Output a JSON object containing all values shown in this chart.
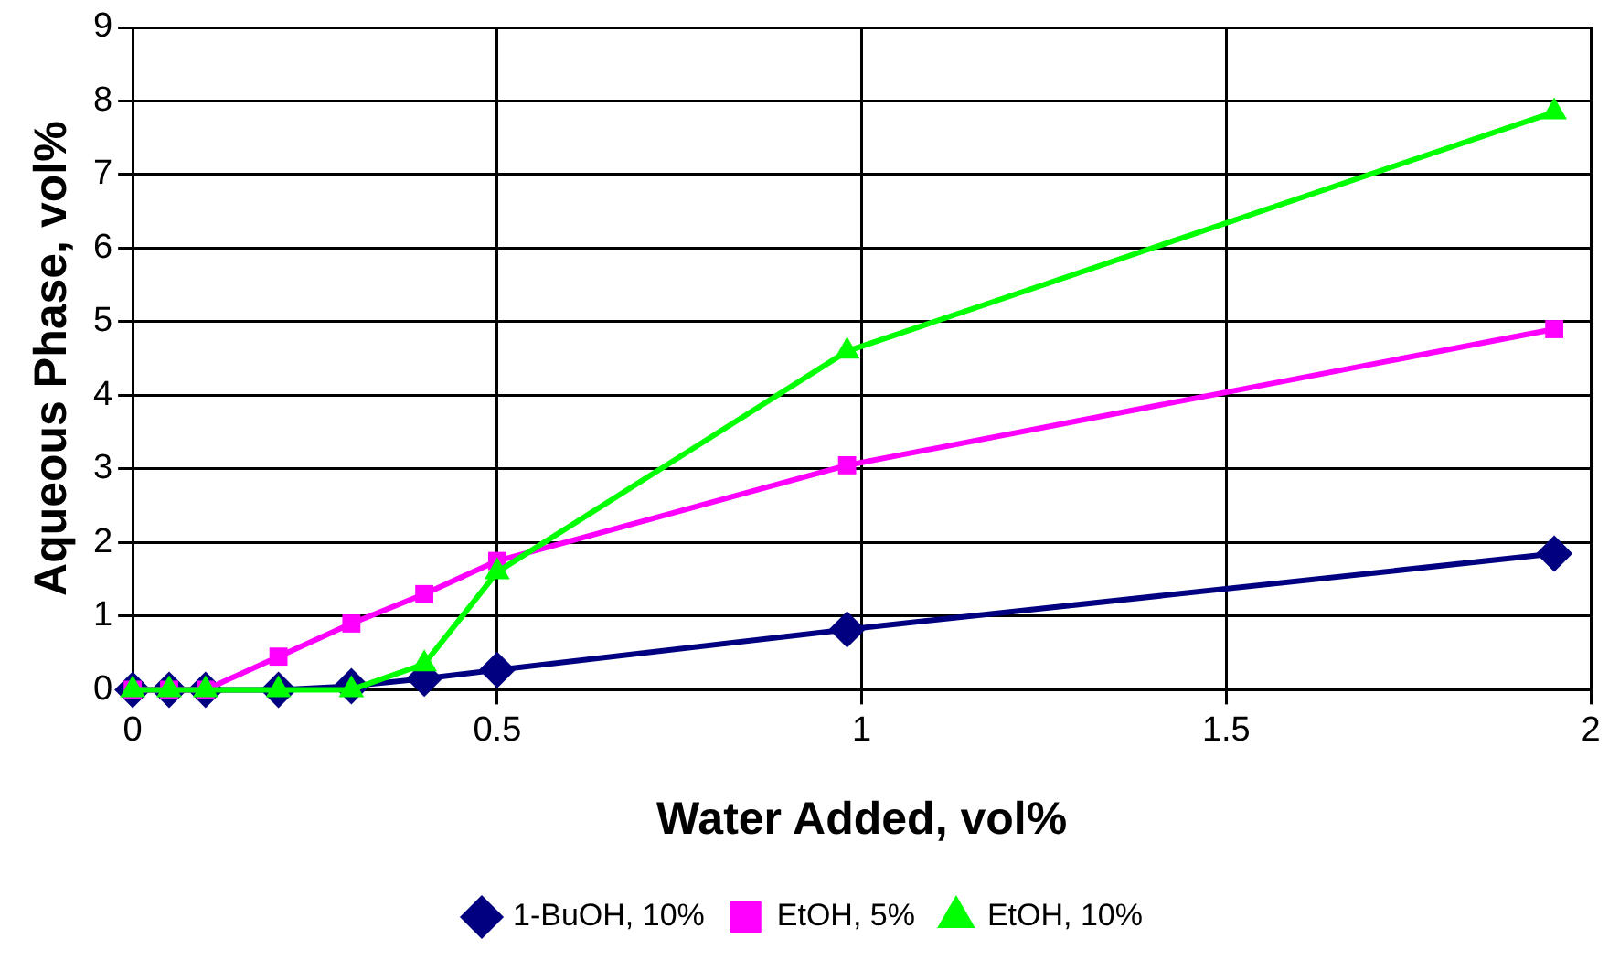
{
  "chart_data": {
    "type": "line",
    "xlabel": "Water Added, vol%",
    "ylabel": "Aqueous Phase, vol%",
    "x": [
      0,
      0.05,
      0.1,
      0.2,
      0.3,
      0.4,
      0.5,
      0.98,
      1.95
    ],
    "series": [
      {
        "name": "1-BuOH, 10%",
        "color": "#000080",
        "marker": "diamond",
        "values": [
          0,
          0,
          0,
          0,
          0.05,
          0.15,
          0.27,
          0.82,
          1.85
        ]
      },
      {
        "name": "EtOH, 5%",
        "color": "#ff00ff",
        "marker": "square",
        "values": [
          0,
          0,
          0,
          0.45,
          0.9,
          1.3,
          1.75,
          3.05,
          4.9
        ]
      },
      {
        "name": "EtOH, 10%",
        "color": "#00ff00",
        "marker": "triangle",
        "values": [
          0,
          0,
          0,
          0,
          0,
          0.35,
          1.6,
          4.6,
          7.85
        ]
      }
    ],
    "xlim": [
      0,
      2
    ],
    "xticks": [
      0,
      0.5,
      1,
      1.5,
      2
    ],
    "ylim": [
      0,
      9
    ],
    "yticks": [
      0,
      1,
      2,
      3,
      4,
      5,
      6,
      7,
      8,
      9
    ],
    "grid": true,
    "legend": "bottom"
  }
}
